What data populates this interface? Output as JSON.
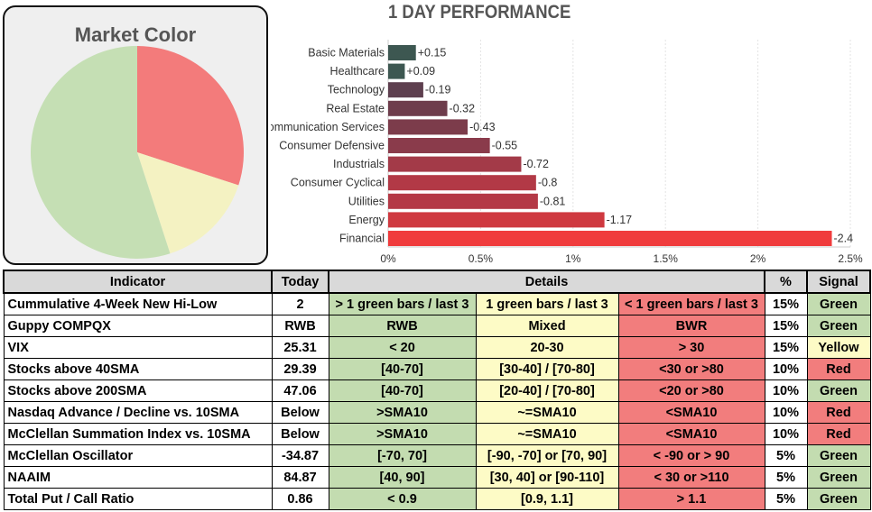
{
  "market_color": {
    "title": "Market Color",
    "colors": {
      "green": "#c5dfb4",
      "yellow": "#f4f2c2",
      "red": "#f37b7b"
    }
  },
  "chart_data": [
    {
      "type": "pie",
      "title": "Market Color",
      "categories": [
        "Red",
        "Yellow",
        "Green"
      ],
      "values": [
        30,
        15,
        55
      ],
      "colors": [
        "#f37b7b",
        "#f4f2c2",
        "#c5dfb4"
      ]
    },
    {
      "type": "bar",
      "orientation": "horizontal",
      "title": "1 DAY PERFORMANCE",
      "categories": [
        "Basic Materials",
        "Healthcare",
        "Technology",
        "Real Estate",
        "Communication Services",
        "Consumer Defensive",
        "Industrials",
        "Consumer Cyclical",
        "Utilities",
        "Energy",
        "Financial"
      ],
      "values": [
        0.15,
        0.09,
        -0.19,
        -0.32,
        -0.43,
        -0.55,
        -0.72,
        -0.8,
        -0.81,
        -1.17,
        -2.4
      ],
      "value_labels": [
        "+0.15",
        "+0.09",
        "-0.19",
        "-0.32",
        "-0.43",
        "-0.55",
        "-0.72",
        "-0.8",
        "-0.81",
        "-1.17",
        "-2.4"
      ],
      "bar_colors": [
        "#3d5751",
        "#3d5751",
        "#5e3f4f",
        "#6e3d4c",
        "#7c3c4b",
        "#8a3b4b",
        "#a33a48",
        "#b23946",
        "#b43946",
        "#cf3940",
        "#f03c3d"
      ],
      "xticks": [
        "0%",
        "0.5%",
        "1%",
        "1.5%",
        "2%",
        "2.5%"
      ],
      "xlim": [
        0,
        2.5
      ],
      "xlabel": "",
      "ylabel": ""
    }
  ],
  "table": {
    "headers": {
      "indicator": "Indicator",
      "today": "Today",
      "details": "Details",
      "pct": "%",
      "signal": "Signal"
    },
    "rows": [
      {
        "indicator": "Cummulative 4-Week New Hi-Low",
        "today": "2",
        "green": "> 1 green bars / last 3",
        "yellow": "1 green bars / last 3",
        "red": "< 1 green bars / last 3",
        "pct": "15%",
        "signal": "Green",
        "signal_color": "green"
      },
      {
        "indicator": "Guppy COMPQX",
        "today": "RWB",
        "green": "RWB",
        "yellow": "Mixed",
        "red": "BWR",
        "pct": "15%",
        "signal": "Green",
        "signal_color": "green"
      },
      {
        "indicator": "VIX",
        "today": "25.31",
        "green": "< 20",
        "yellow": "20-30",
        "red": "> 30",
        "pct": "15%",
        "signal": "Yellow",
        "signal_color": "yellow"
      },
      {
        "indicator": "Stocks above 40SMA",
        "today": "29.39",
        "green": "[40-70]",
        "yellow": "[30-40] / [70-80]",
        "red": "<30 or >80",
        "pct": "10%",
        "signal": "Red",
        "signal_color": "red"
      },
      {
        "indicator": "Stocks above 200SMA",
        "today": "47.06",
        "green": "[40-70]",
        "yellow": "[20-40] / [70-80]",
        "red": "<20 or >80",
        "pct": "10%",
        "signal": "Green",
        "signal_color": "green"
      },
      {
        "indicator": "Nasdaq Advance / Decline vs. 10SMA",
        "today": "Below",
        "green": ">SMA10",
        "yellow": "~=SMA10",
        "red": "<SMA10",
        "pct": "10%",
        "signal": "Red",
        "signal_color": "red"
      },
      {
        "indicator": "McClellan Summation Index vs. 10SMA",
        "today": "Below",
        "green": ">SMA10",
        "yellow": "~=SMA10",
        "red": "<SMA10",
        "pct": "10%",
        "signal": "Red",
        "signal_color": "red"
      },
      {
        "indicator": "McClellan Oscillator",
        "today": "-34.87",
        "green": "[-70,  70]",
        "yellow": "[-90, -70] or [70, 90]",
        "red": "< -90 or > 90",
        "pct": "5%",
        "signal": "Green",
        "signal_color": "green"
      },
      {
        "indicator": "NAAIM",
        "today": "84.87",
        "green": "[40, 90]",
        "yellow": "[30, 40] or [90-110]",
        "red": "< 30 or >110",
        "pct": "5%",
        "signal": "Green",
        "signal_color": "green"
      },
      {
        "indicator": "Total Put / Call Ratio",
        "today": "0.86",
        "green": "< 0.9",
        "yellow": "[0.9, 1.1]",
        "red": "> 1.1",
        "pct": "5%",
        "signal": "Green",
        "signal_color": "green"
      }
    ]
  }
}
